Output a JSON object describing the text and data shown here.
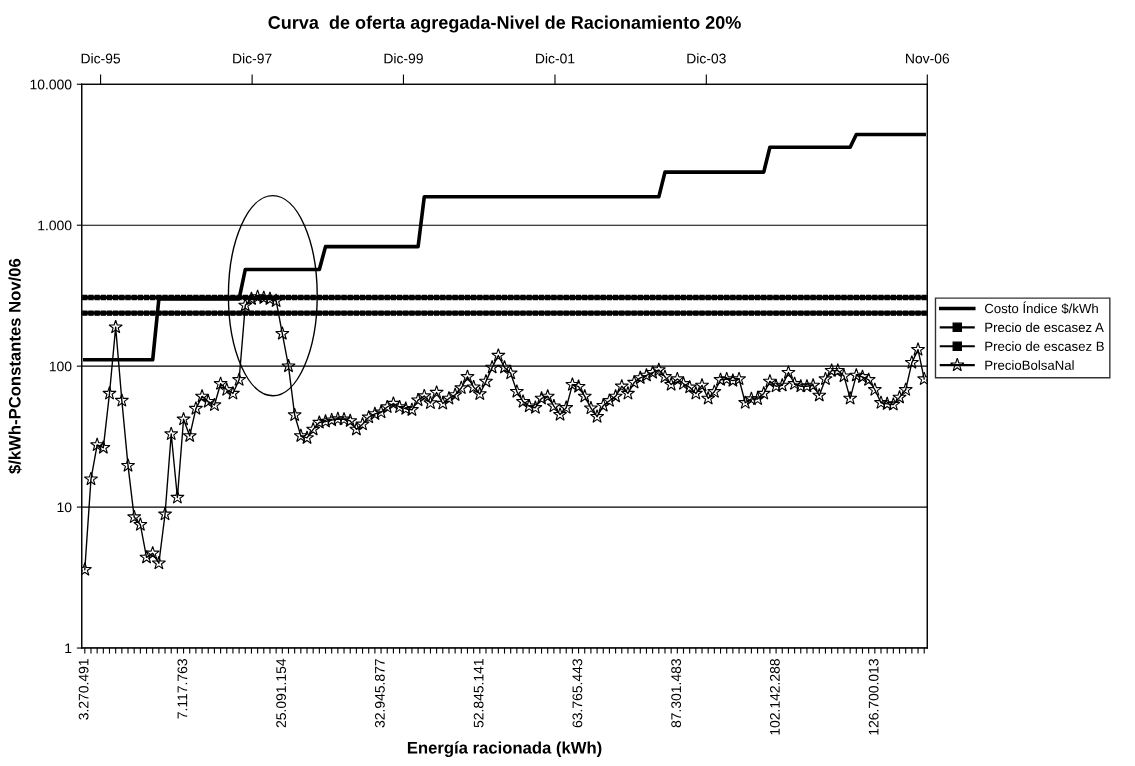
{
  "chart_data": {
    "type": "line",
    "title": "Curva  de oferta agregada-Nivel de Racionamiento 20%",
    "xlabel": "Energía racionada (kWh)",
    "ylabel": "$/kWh-PConstantes Nov/06",
    "categories": [
      "3.270.491",
      null,
      null,
      null,
      null,
      null,
      null,
      null,
      null,
      null,
      null,
      null,
      null,
      null,
      null,
      null,
      "7.117.763",
      null,
      null,
      null,
      null,
      null,
      null,
      null,
      null,
      null,
      null,
      null,
      null,
      null,
      null,
      null,
      "25.091.154",
      null,
      null,
      null,
      null,
      null,
      null,
      null,
      null,
      null,
      null,
      null,
      null,
      null,
      null,
      null,
      "32.945.877",
      null,
      null,
      null,
      null,
      null,
      null,
      null,
      null,
      null,
      null,
      null,
      null,
      null,
      null,
      null,
      "52.845.141",
      null,
      null,
      null,
      null,
      null,
      null,
      null,
      null,
      null,
      null,
      null,
      null,
      null,
      null,
      null,
      "63.765.443",
      null,
      null,
      null,
      null,
      null,
      null,
      null,
      null,
      null,
      null,
      null,
      null,
      null,
      null,
      null,
      "87.301.483",
      null,
      null,
      null,
      null,
      null,
      null,
      null,
      null,
      null,
      null,
      null,
      null,
      null,
      null,
      null,
      "102.142.288",
      null,
      null,
      null,
      null,
      null,
      null,
      null,
      null,
      null,
      null,
      null,
      null,
      null,
      null,
      null,
      "126.700.013",
      null,
      null,
      null,
      null,
      null,
      null,
      null,
      null
    ],
    "series": [
      {
        "name": "Costo Índice $/kWh",
        "color": "#000000",
        "marker": "none",
        "values": [
          111,
          111,
          111,
          111,
          111,
          111,
          111,
          111,
          111,
          111,
          111,
          111,
          300,
          300,
          300,
          300,
          300,
          300,
          300,
          300,
          300,
          300,
          300,
          300,
          300,
          300,
          485,
          485,
          485,
          485,
          485,
          485,
          485,
          485,
          485,
          485,
          485,
          485,
          485,
          705,
          705,
          705,
          705,
          705,
          705,
          705,
          705,
          705,
          705,
          705,
          705,
          705,
          705,
          705,
          705,
          1590,
          1590,
          1590,
          1590,
          1590,
          1590,
          1590,
          1590,
          1590,
          1590,
          1590,
          1590,
          1590,
          1590,
          1590,
          1590,
          1590,
          1590,
          1590,
          1590,
          1590,
          1590,
          1590,
          1590,
          1590,
          1590,
          1590,
          1590,
          1590,
          1590,
          1590,
          1590,
          1590,
          1590,
          1590,
          1590,
          1590,
          1590,
          1590,
          2380,
          2380,
          2380,
          2380,
          2380,
          2380,
          2380,
          2380,
          2380,
          2380,
          2380,
          2380,
          2380,
          2380,
          2380,
          2380,
          2380,
          3570,
          3570,
          3570,
          3570,
          3570,
          3570,
          3570,
          3570,
          3570,
          3570,
          3570,
          3570,
          3570,
          3570,
          4400,
          4400,
          4400,
          4400,
          4400,
          4400,
          4400,
          4400,
          4400,
          4400,
          4400,
          4400
        ]
      },
      {
        "name": "Precio de escasez A",
        "color": "#000000",
        "marker": "square",
        "values": [
          307,
          307,
          307,
          307,
          307,
          307,
          307,
          307,
          307,
          307,
          307,
          307,
          307,
          307,
          307,
          307,
          307,
          307,
          307,
          307,
          307,
          307,
          307,
          307,
          307,
          307,
          307,
          307,
          307,
          307,
          307,
          307,
          307,
          307,
          307,
          307,
          307,
          307,
          307,
          307,
          307,
          307,
          307,
          307,
          307,
          307,
          307,
          307,
          307,
          307,
          307,
          307,
          307,
          307,
          307,
          307,
          307,
          307,
          307,
          307,
          307,
          307,
          307,
          307,
          307,
          307,
          307,
          307,
          307,
          307,
          307,
          307,
          307,
          307,
          307,
          307,
          307,
          307,
          307,
          307,
          307,
          307,
          307,
          307,
          307,
          307,
          307,
          307,
          307,
          307,
          307,
          307,
          307,
          307,
          307,
          307,
          307,
          307,
          307,
          307,
          307,
          307,
          307,
          307,
          307,
          307,
          307,
          307,
          307,
          307,
          307,
          307,
          307,
          307,
          307,
          307,
          307,
          307,
          307,
          307,
          307,
          307,
          307,
          307,
          307,
          307,
          307,
          307,
          307,
          307,
          307,
          307,
          307,
          307,
          307,
          307,
          307
        ]
      },
      {
        "name": "Precio de escasez B",
        "color": "#000000",
        "marker": "square",
        "values": [
          238,
          238,
          238,
          238,
          238,
          238,
          238,
          238,
          238,
          238,
          238,
          238,
          238,
          238,
          238,
          238,
          238,
          238,
          238,
          238,
          238,
          238,
          238,
          238,
          238,
          238,
          238,
          238,
          238,
          238,
          238,
          238,
          238,
          238,
          238,
          238,
          238,
          238,
          238,
          238,
          238,
          238,
          238,
          238,
          238,
          238,
          238,
          238,
          238,
          238,
          238,
          238,
          238,
          238,
          238,
          238,
          238,
          238,
          238,
          238,
          238,
          238,
          238,
          238,
          238,
          238,
          238,
          238,
          238,
          238,
          238,
          238,
          238,
          238,
          238,
          238,
          238,
          238,
          238,
          238,
          238,
          238,
          238,
          238,
          238,
          238,
          238,
          238,
          238,
          238,
          238,
          238,
          238,
          238,
          238,
          238,
          238,
          238,
          238,
          238,
          238,
          238,
          238,
          238,
          238,
          238,
          238,
          238,
          238,
          238,
          238,
          238,
          238,
          238,
          238,
          238,
          238,
          238,
          238,
          238,
          238,
          238,
          238,
          238,
          238,
          238,
          238,
          238,
          238,
          238,
          238,
          238,
          238,
          238,
          238,
          238,
          238
        ]
      },
      {
        "name": "PrecioBolsaNal",
        "color": "#000000",
        "marker": "star",
        "values": [
          3.6,
          15.8,
          27.6,
          26.4,
          64,
          189,
          57,
          19.7,
          8.5,
          7.5,
          4.4,
          4.7,
          4.0,
          8.9,
          33,
          11.7,
          42,
          32,
          50,
          61,
          56,
          53,
          75,
          68,
          64,
          80,
          270,
          300,
          310,
          305,
          300,
          290,
          170,
          100,
          45,
          32,
          31,
          35.6,
          39.8,
          40.5,
          41.4,
          42.2,
          42,
          40.9,
          35.6,
          38.7,
          43.4,
          45.8,
          47.1,
          51.3,
          54.3,
          51.3,
          49.9,
          49,
          57.4,
          61.4,
          54.8,
          65,
          54.3,
          59,
          62.5,
          70,
          84,
          71,
          63.5,
          78,
          98,
          119,
          98,
          89,
          66,
          56,
          52,
          50.7,
          59,
          61,
          52,
          45.3,
          50.7,
          74,
          71.6,
          61,
          50.3,
          43.8,
          52.5,
          56.8,
          61,
          72,
          64,
          76.5,
          82.6,
          86,
          90,
          94,
          84,
          74,
          81,
          75,
          70.8,
          64,
          73,
          59,
          65.8,
          80,
          81,
          79,
          81,
          55,
          58.5,
          58.5,
          64,
          78,
          72,
          73,
          90,
          75,
          72,
          72,
          73,
          62,
          81,
          93,
          93,
          85,
          59,
          86,
          84,
          80,
          68,
          55,
          54,
          53.4,
          60,
          68,
          106,
          131,
          81
        ]
      }
    ],
    "log": "y",
    "ylim": [
      1,
      10000
    ],
    "yticks": [
      {
        "value": 1,
        "label": "1"
      },
      {
        "value": 10,
        "label": "10"
      },
      {
        "value": 100,
        "label": "100"
      },
      {
        "value": 1000,
        "label": "1.000"
      },
      {
        "value": 10000,
        "label": "10.000"
      }
    ],
    "x2lim": [
      "1995-09",
      "2006-11"
    ],
    "x2ticks": [
      {
        "value": "1995-12",
        "label": "Dic-95"
      },
      {
        "value": "1997-12",
        "label": "Dic-97"
      },
      {
        "value": "1999-12",
        "label": "Dic-99"
      },
      {
        "value": "2001-12",
        "label": "Dic-01"
      },
      {
        "value": "2003-12",
        "label": "Dic-03"
      },
      {
        "value": "2006-11",
        "label": "Nov-06"
      }
    ],
    "grid": "y",
    "legend": "right",
    "line_style": "solid"
  }
}
